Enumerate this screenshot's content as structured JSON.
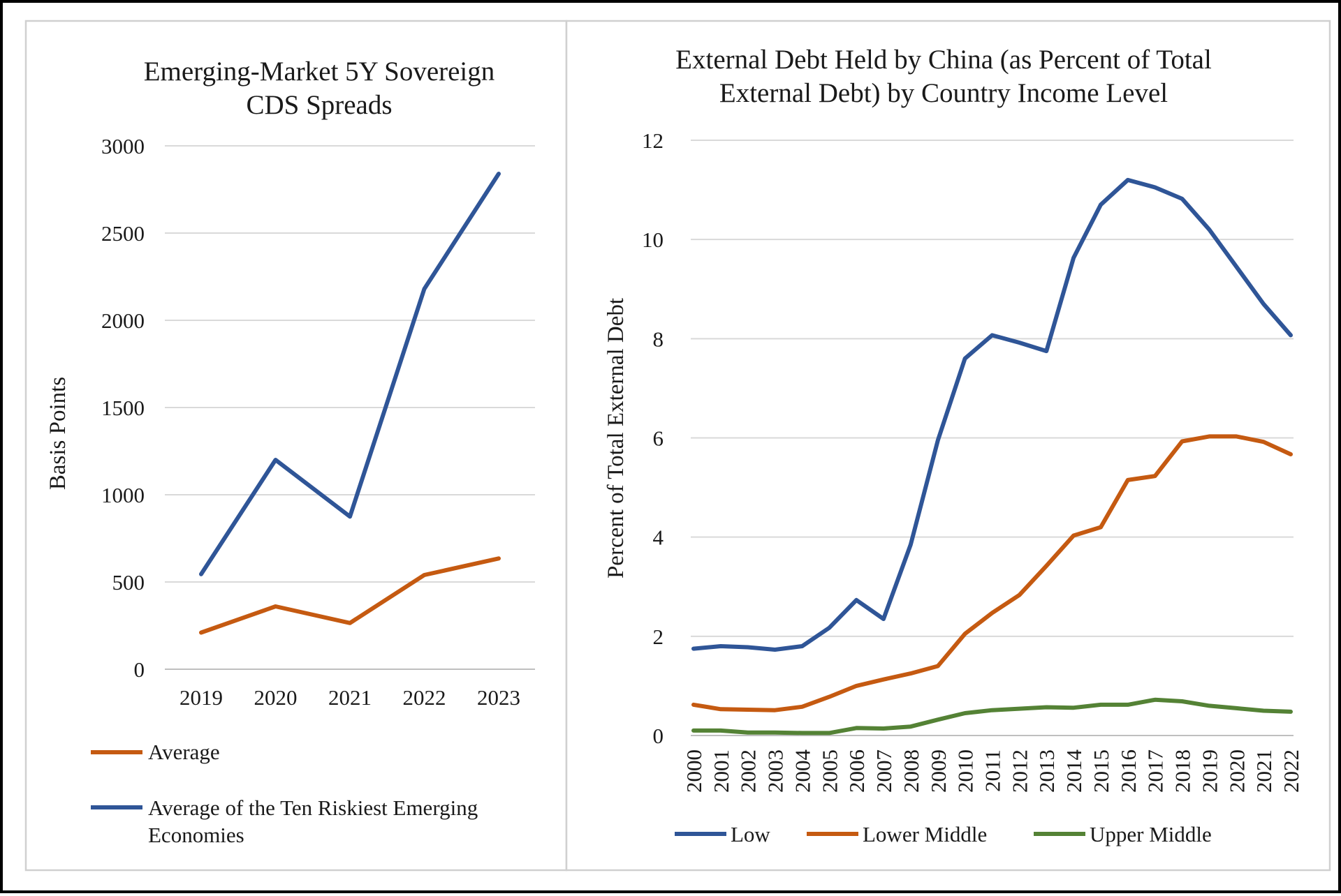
{
  "chart_data": [
    {
      "type": "line",
      "title": [
        "Emerging-Market 5Y Sovereign",
        "CDS Spreads"
      ],
      "xlabel": "",
      "ylabel": "Basis Points",
      "categories": [
        "2019",
        "2020",
        "2021",
        "2022",
        "2023"
      ],
      "ylim": [
        0,
        3000
      ],
      "yticks": [
        0,
        500,
        1000,
        1500,
        2000,
        2500,
        3000
      ],
      "grid": true,
      "legend_position": "bottom",
      "series": [
        {
          "name": "Average",
          "color": "#C55A11",
          "values": [
            210,
            360,
            265,
            540,
            635
          ]
        },
        {
          "name": "Average of the Ten Riskiest Emerging Economies",
          "legend_lines": [
            "Average of the Ten Riskiest Emerging",
            "Economies"
          ],
          "color": "#2F5597",
          "values": [
            545,
            1200,
            875,
            2180,
            2840
          ]
        }
      ]
    },
    {
      "type": "line",
      "title": [
        "External Debt Held by China (as Percent of Total",
        "External Debt) by Country Income Level"
      ],
      "xlabel": "",
      "ylabel": "Percent of Total External Debt",
      "categories": [
        "2000",
        "2001",
        "2002",
        "2003",
        "2004",
        "2005",
        "2006",
        "2007",
        "2008",
        "2009",
        "2010",
        "2011",
        "2012",
        "2013",
        "2014",
        "2015",
        "2016",
        "2017",
        "2018",
        "2019",
        "2020",
        "2021",
        "2022"
      ],
      "ylim": [
        0,
        12
      ],
      "yticks": [
        0,
        2,
        4,
        6,
        8,
        10,
        12
      ],
      "grid": true,
      "legend_position": "bottom",
      "series": [
        {
          "name": "Low",
          "color": "#2F5597",
          "values": [
            1.75,
            1.8,
            1.78,
            1.73,
            1.8,
            2.17,
            2.73,
            2.35,
            3.85,
            5.95,
            7.6,
            8.07,
            7.92,
            7.75,
            9.63,
            10.7,
            11.2,
            11.05,
            10.82,
            10.2,
            9.45,
            8.7,
            8.07
          ]
        },
        {
          "name": "Lower Middle",
          "color": "#C55A11",
          "values": [
            0.62,
            0.53,
            0.52,
            0.51,
            0.58,
            0.78,
            1.0,
            1.13,
            1.25,
            1.4,
            2.05,
            2.47,
            2.83,
            3.42,
            4.03,
            4.2,
            5.15,
            5.23,
            5.93,
            6.03,
            6.03,
            5.92,
            5.67
          ]
        },
        {
          "name": "Upper Middle",
          "color": "#548235",
          "values": [
            0.1,
            0.1,
            0.06,
            0.06,
            0.05,
            0.05,
            0.15,
            0.14,
            0.18,
            0.32,
            0.45,
            0.51,
            0.54,
            0.57,
            0.56,
            0.62,
            0.62,
            0.72,
            0.69,
            0.6,
            0.55,
            0.5,
            0.48
          ]
        }
      ]
    }
  ]
}
